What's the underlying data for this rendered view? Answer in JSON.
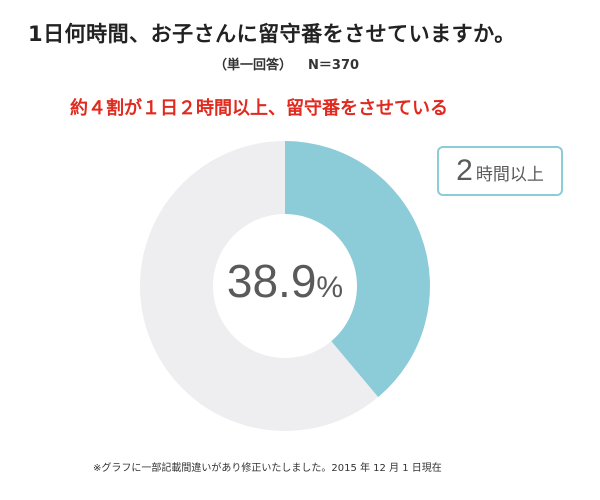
{
  "title": "1日何時間、お子さんに留守番をさせていますか。",
  "subtitle": {
    "question_type": "（単一回答）",
    "sample_size": "N＝370"
  },
  "headline": "約４割が１日２時間以上、留守番をさせている",
  "chart_data": {
    "type": "pie",
    "donut": true,
    "slices": [
      {
        "label": "2時間以上",
        "value": 38.9,
        "color": "#8ccbd8"
      },
      {
        "label": "",
        "value": 61.1,
        "color": "#eeeef0"
      }
    ],
    "center_label": {
      "number": "38.9",
      "unit": "%"
    },
    "callout": {
      "number": "2",
      "text": "時間以上"
    }
  },
  "footnote": "※グラフに一部記載間違いがあり修正いたしました。2015 年 12 月 1 日現在"
}
